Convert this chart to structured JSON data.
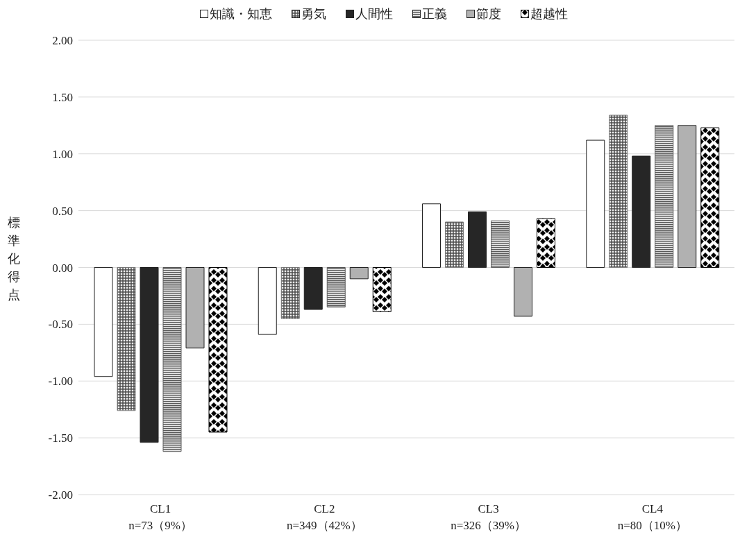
{
  "chart_data": {
    "type": "bar",
    "ylabel": "標準化得点",
    "categories": [
      "CL1\nn=73（9%）",
      "CL2\nn=349（42%）",
      "CL3\nn=326（39%）",
      "CL4\nn=80（10%）"
    ],
    "series": [
      {
        "name": "知識・知恵",
        "color": "#ffffff",
        "values": [
          -0.96,
          -0.59,
          0.56,
          1.12
        ]
      },
      {
        "name": "勇気",
        "color": "#777777",
        "values": [
          -1.26,
          -0.45,
          0.4,
          1.34
        ]
      },
      {
        "name": "人間性",
        "color": "#262626",
        "values": [
          -1.54,
          -0.37,
          0.49,
          0.98
        ]
      },
      {
        "name": "正義",
        "color": "#5a5a5a",
        "values": [
          -1.62,
          -0.35,
          0.41,
          1.25
        ]
      },
      {
        "name": "節度",
        "color": "#b1b1b1",
        "values": [
          -0.71,
          -0.1,
          -0.43,
          1.25
        ]
      },
      {
        "name": "超越性",
        "color": "#000000",
        "values": [
          -1.45,
          -0.39,
          0.43,
          1.23
        ]
      }
    ],
    "ylim": [
      -2,
      2
    ],
    "yticks": [
      {
        "value": -2,
        "label": "-2.00"
      },
      {
        "value": -1.5,
        "label": "-1.50"
      },
      {
        "value": -1,
        "label": "-1.00"
      },
      {
        "value": -0.5,
        "label": "-0.50"
      },
      {
        "value": 0,
        "label": "0.00"
      },
      {
        "value": 0.5,
        "label": "0.50"
      },
      {
        "value": 1,
        "label": "1.00"
      },
      {
        "value": 1.5,
        "label": "1.50"
      },
      {
        "value": 2,
        "label": "2.00"
      }
    ],
    "grid": "y",
    "legend": "top"
  }
}
